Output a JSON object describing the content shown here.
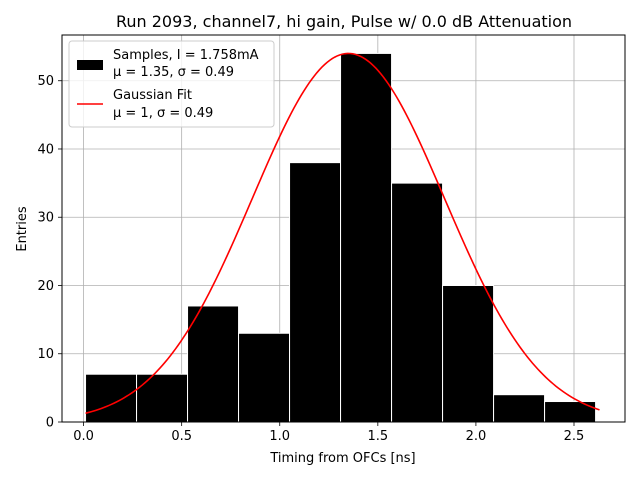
{
  "chart_data": {
    "type": "bar",
    "title": "Run 2093, channel7, hi gain, Pulse w/ 0.0 dB Attenuation",
    "xlabel": "Timing from OFCs [ns]",
    "ylabel": "Entries",
    "xlim": [
      -0.11,
      2.76
    ],
    "ylim": [
      0,
      56.7
    ],
    "grid": true,
    "xticks": [
      0.0,
      0.5,
      1.0,
      1.5,
      2.0,
      2.5
    ],
    "xtick_labels": [
      "0.0",
      "0.5",
      "1.0",
      "1.5",
      "2.0",
      "2.5"
    ],
    "yticks": [
      0,
      10,
      20,
      30,
      40,
      50
    ],
    "ytick_labels": [
      "0",
      "10",
      "20",
      "30",
      "40",
      "50"
    ],
    "bins": [
      {
        "left": 0.01,
        "right": 0.27,
        "count": 7
      },
      {
        "left": 0.27,
        "right": 0.53,
        "count": 7
      },
      {
        "left": 0.53,
        "right": 0.79,
        "count": 17
      },
      {
        "left": 0.79,
        "right": 1.05,
        "count": 13
      },
      {
        "left": 1.05,
        "right": 1.31,
        "count": 38
      },
      {
        "left": 1.31,
        "right": 1.57,
        "count": 54
      },
      {
        "left": 1.57,
        "right": 1.83,
        "count": 35
      },
      {
        "left": 1.83,
        "right": 2.09,
        "count": 20
      },
      {
        "left": 2.09,
        "right": 2.35,
        "count": 4
      },
      {
        "left": 2.35,
        "right": 2.61,
        "count": 3
      }
    ],
    "series": [
      {
        "name": "Samples",
        "kind": "histogram",
        "color": "#000000",
        "edgecolor": "#ffffff"
      },
      {
        "name": "Gaussian Fit",
        "kind": "line",
        "color": "#ff0000",
        "amplitude": 54,
        "mu": 1.35,
        "sigma": 0.49,
        "x_start": 0.01,
        "x_end": 2.63
      }
    ],
    "legend": {
      "position": "top-left",
      "entries": [
        {
          "line1": "Samples, I = 1.758mA",
          "line2": "μ = 1.35, σ = 0.49",
          "color": "#000000",
          "marker": "patch"
        },
        {
          "line1": "Gaussian Fit",
          "line2": "μ = 1, σ = 0.49",
          "color": "#ff0000",
          "marker": "line"
        }
      ]
    }
  }
}
